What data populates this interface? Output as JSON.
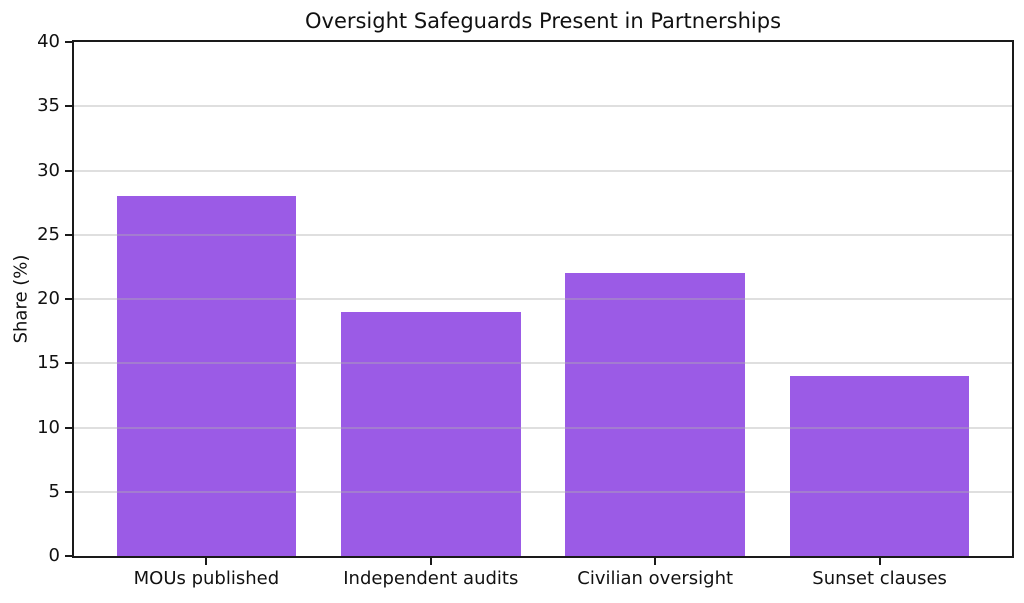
{
  "chart_data": {
    "type": "bar",
    "title": "Oversight Safeguards Present in Partnerships",
    "categories": [
      "MOUs published",
      "Independent audits",
      "Civilian oversight",
      "Sunset clauses"
    ],
    "values": [
      28,
      19,
      22,
      14
    ],
    "xlabel": "",
    "ylabel": "Share (%)",
    "ylim": [
      0,
      40
    ],
    "yticks": [
      0,
      5,
      10,
      15,
      20,
      25,
      30,
      35,
      40
    ],
    "xlim": [
      -0.59,
      3.59
    ],
    "bar_width": 0.8,
    "bar_color": "#9b5be6",
    "grid": "horizontal",
    "gridline_color": "rgba(176,176,176,0.4)",
    "spine_color": "#1a1a1a",
    "legend": "none"
  }
}
